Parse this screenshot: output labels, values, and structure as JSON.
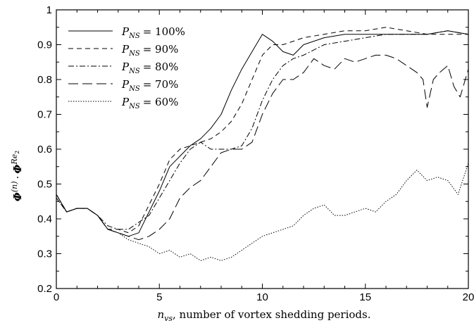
{
  "chart_data": {
    "type": "line",
    "title": "",
    "xlabel": "n_vs, number of vortex shedding periods.",
    "xlabel_parts": {
      "symbol_base": "n",
      "symbol_sub": "vs",
      "rest": ", number of vortex shedding periods."
    },
    "ylabel": "Φ^(n) · Φ^Re2",
    "ylabel_parts": {
      "phi1": "Φ",
      "sup1": "(n)",
      "dot": "·",
      "phi2": "Φ",
      "sup2_base": "Re",
      "sup2_sub": "2"
    },
    "xlim": [
      0,
      20
    ],
    "ylim": [
      0.2,
      1.0
    ],
    "x_ticks": [
      "0",
      "5",
      "10",
      "15",
      "20"
    ],
    "y_ticks": [
      "0.2",
      "0.3",
      "0.4",
      "0.5",
      "0.6",
      "0.7",
      "0.8",
      "0.9",
      "1"
    ],
    "grid": false,
    "legend_position": "top-left",
    "series": [
      {
        "name": "P_NS = 100%",
        "legend_sub": "NS",
        "legend_value": "= 100%",
        "dash": "",
        "points": [
          [
            0,
            0.47
          ],
          [
            0.5,
            0.42
          ],
          [
            1,
            0.43
          ],
          [
            1.5,
            0.43
          ],
          [
            2,
            0.41
          ],
          [
            2.5,
            0.37
          ],
          [
            3,
            0.36
          ],
          [
            3.5,
            0.35
          ],
          [
            4,
            0.36
          ],
          [
            4.5,
            0.42
          ],
          [
            5,
            0.48
          ],
          [
            5.5,
            0.55
          ],
          [
            6,
            0.58
          ],
          [
            6.5,
            0.61
          ],
          [
            7,
            0.63
          ],
          [
            7.5,
            0.66
          ],
          [
            8,
            0.7
          ],
          [
            8.5,
            0.77
          ],
          [
            9,
            0.83
          ],
          [
            9.5,
            0.88
          ],
          [
            10,
            0.93
          ],
          [
            10.5,
            0.91
          ],
          [
            11,
            0.88
          ],
          [
            11.5,
            0.87
          ],
          [
            12,
            0.9
          ],
          [
            13,
            0.92
          ],
          [
            14,
            0.93
          ],
          [
            15,
            0.93
          ],
          [
            16,
            0.93
          ],
          [
            17,
            0.93
          ],
          [
            18,
            0.93
          ],
          [
            19,
            0.94
          ],
          [
            20,
            0.93
          ]
        ]
      },
      {
        "name": "P_NS = 90%",
        "legend_sub": "NS",
        "legend_value": "= 90%",
        "dash": "7,5",
        "points": [
          [
            0,
            0.46
          ],
          [
            0.5,
            0.42
          ],
          [
            1,
            0.43
          ],
          [
            1.5,
            0.43
          ],
          [
            2,
            0.41
          ],
          [
            2.5,
            0.37
          ],
          [
            3,
            0.37
          ],
          [
            3.5,
            0.36
          ],
          [
            4,
            0.38
          ],
          [
            4.5,
            0.44
          ],
          [
            5,
            0.5
          ],
          [
            5.5,
            0.57
          ],
          [
            6,
            0.6
          ],
          [
            6.5,
            0.61
          ],
          [
            7,
            0.62
          ],
          [
            7.5,
            0.63
          ],
          [
            8,
            0.65
          ],
          [
            8.5,
            0.68
          ],
          [
            9,
            0.73
          ],
          [
            9.5,
            0.8
          ],
          [
            10,
            0.87
          ],
          [
            10.5,
            0.9
          ],
          [
            11,
            0.9
          ],
          [
            11.5,
            0.91
          ],
          [
            12,
            0.92
          ],
          [
            13,
            0.93
          ],
          [
            14,
            0.94
          ],
          [
            15,
            0.94
          ],
          [
            16,
            0.95
          ],
          [
            17,
            0.94
          ],
          [
            18,
            0.93
          ],
          [
            19,
            0.93
          ],
          [
            20,
            0.93
          ]
        ]
      },
      {
        "name": "P_NS = 80%",
        "legend_sub": "NS",
        "legend_value": "= 80%",
        "dash": "8,3,2,3",
        "points": [
          [
            0,
            0.47
          ],
          [
            0.5,
            0.42
          ],
          [
            1,
            0.43
          ],
          [
            1.5,
            0.43
          ],
          [
            2,
            0.41
          ],
          [
            2.5,
            0.38
          ],
          [
            3,
            0.37
          ],
          [
            3.5,
            0.37
          ],
          [
            4,
            0.39
          ],
          [
            4.5,
            0.41
          ],
          [
            5,
            0.46
          ],
          [
            5.5,
            0.51
          ],
          [
            6,
            0.56
          ],
          [
            6.5,
            0.6
          ],
          [
            7,
            0.62
          ],
          [
            7.5,
            0.6
          ],
          [
            8,
            0.6
          ],
          [
            8.5,
            0.6
          ],
          [
            9,
            0.61
          ],
          [
            9.5,
            0.66
          ],
          [
            10,
            0.74
          ],
          [
            10.5,
            0.8
          ],
          [
            11,
            0.84
          ],
          [
            11.5,
            0.86
          ],
          [
            12,
            0.87
          ],
          [
            13,
            0.9
          ],
          [
            14,
            0.91
          ],
          [
            15,
            0.92
          ],
          [
            16,
            0.93
          ],
          [
            17,
            0.93
          ],
          [
            18,
            0.93
          ],
          [
            19,
            0.94
          ],
          [
            20,
            0.93
          ]
        ]
      },
      {
        "name": "P_NS = 70%",
        "legend_sub": "NS",
        "legend_value": "= 70%",
        "dash": "14,6",
        "points": [
          [
            0,
            0.47
          ],
          [
            0.5,
            0.42
          ],
          [
            1,
            0.43
          ],
          [
            1.5,
            0.43
          ],
          [
            2,
            0.41
          ],
          [
            2.5,
            0.37
          ],
          [
            3,
            0.36
          ],
          [
            3.5,
            0.35
          ],
          [
            4,
            0.34
          ],
          [
            4.5,
            0.35
          ],
          [
            5,
            0.37
          ],
          [
            5.5,
            0.4
          ],
          [
            6,
            0.46
          ],
          [
            6.5,
            0.49
          ],
          [
            7,
            0.51
          ],
          [
            7.5,
            0.55
          ],
          [
            8,
            0.59
          ],
          [
            8.5,
            0.6
          ],
          [
            9,
            0.6
          ],
          [
            9.5,
            0.62
          ],
          [
            10,
            0.7
          ],
          [
            10.5,
            0.76
          ],
          [
            11,
            0.8
          ],
          [
            11.5,
            0.8
          ],
          [
            12,
            0.82
          ],
          [
            12.5,
            0.86
          ],
          [
            13,
            0.84
          ],
          [
            13.5,
            0.83
          ],
          [
            14,
            0.86
          ],
          [
            14.5,
            0.85
          ],
          [
            15,
            0.86
          ],
          [
            15.5,
            0.87
          ],
          [
            16,
            0.87
          ],
          [
            16.5,
            0.86
          ],
          [
            17,
            0.84
          ],
          [
            17.5,
            0.82
          ],
          [
            17.8,
            0.8
          ],
          [
            18,
            0.72
          ],
          [
            18.3,
            0.8
          ],
          [
            18.6,
            0.82
          ],
          [
            19,
            0.84
          ],
          [
            19.3,
            0.78
          ],
          [
            19.6,
            0.75
          ],
          [
            20,
            0.83
          ]
        ]
      },
      {
        "name": "P_NS = 60%",
        "legend_sub": "NS",
        "legend_value": "= 60%",
        "dash": "1.5,2",
        "points": [
          [
            0,
            0.46
          ],
          [
            0.5,
            0.42
          ],
          [
            1,
            0.43
          ],
          [
            1.5,
            0.43
          ],
          [
            2,
            0.41
          ],
          [
            2.5,
            0.37
          ],
          [
            3,
            0.36
          ],
          [
            3.5,
            0.34
          ],
          [
            4,
            0.33
          ],
          [
            4.5,
            0.32
          ],
          [
            5,
            0.3
          ],
          [
            5.5,
            0.31
          ],
          [
            6,
            0.29
          ],
          [
            6.5,
            0.3
          ],
          [
            7,
            0.28
          ],
          [
            7.5,
            0.29
          ],
          [
            8,
            0.28
          ],
          [
            8.5,
            0.29
          ],
          [
            9,
            0.31
          ],
          [
            9.5,
            0.33
          ],
          [
            10,
            0.35
          ],
          [
            10.5,
            0.36
          ],
          [
            11,
            0.37
          ],
          [
            11.5,
            0.38
          ],
          [
            12,
            0.41
          ],
          [
            12.5,
            0.43
          ],
          [
            13,
            0.44
          ],
          [
            13.5,
            0.41
          ],
          [
            14,
            0.41
          ],
          [
            14.5,
            0.42
          ],
          [
            15,
            0.43
          ],
          [
            15.5,
            0.42
          ],
          [
            16,
            0.45
          ],
          [
            16.5,
            0.47
          ],
          [
            17,
            0.51
          ],
          [
            17.5,
            0.54
          ],
          [
            18,
            0.51
          ],
          [
            18.5,
            0.52
          ],
          [
            19,
            0.51
          ],
          [
            19.5,
            0.47
          ],
          [
            20,
            0.56
          ]
        ]
      }
    ]
  }
}
